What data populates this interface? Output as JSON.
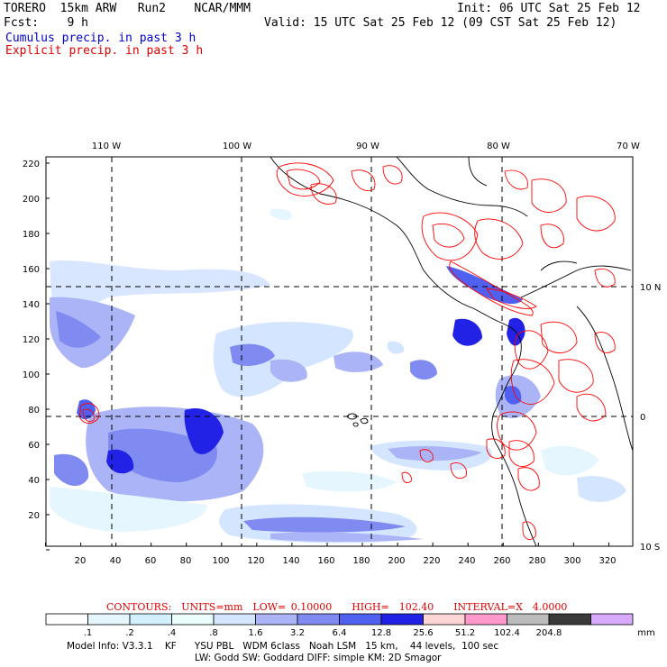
{
  "header": {
    "model_title": "TORERO  15km ARW   Run2    NCAR/MMM",
    "init": "Init: 06 UTC Sat 25 Feb 12",
    "fcst": "Fcst:    9 h",
    "valid": "Valid: 15 UTC Sat 25 Feb 12 (09 CST Sat 25 Feb 12)",
    "field_cumulus": "Cumulus precip. in past 3 h",
    "field_explicit": "Explicit precip. in past 3 h"
  },
  "map": {
    "top_lon_labels": [
      "110 W",
      "100 W",
      "90 W",
      "80 W",
      "70 W"
    ],
    "right_lat_labels": [
      "10 N",
      "0",
      "10 S"
    ],
    "left_y_ticks": [
      "220",
      "200",
      "180",
      "160",
      "140",
      "120",
      "100",
      "80",
      "60",
      "40",
      "20"
    ],
    "bottom_x_ticks": [
      "20",
      "40",
      "60",
      "80",
      "100",
      "120",
      "140",
      "160",
      "180",
      "200",
      "220",
      "240",
      "260",
      "280",
      "300",
      "320"
    ],
    "cumulus_color": "#4455ee",
    "explicit_color": "#ff0000"
  },
  "contours_text": "CONTOURS:  UNITS=mm  LOW= 0.10000    HIGH=  102.40    INTERVAL=X  4.0000",
  "legend": {
    "labels": [
      ".1",
      ".2",
      ".4",
      ".8",
      "1.6",
      "3.2",
      "6.4",
      "12.8",
      "25.6",
      "51.2",
      "102.4",
      "204.8"
    ],
    "unit": "mm",
    "colors": [
      "#ffffff",
      "#e6f6ff",
      "#d2f0ff",
      "#eafffb",
      "#d4e6ff",
      "#aab4f6",
      "#7f8bf0",
      "#5060f0",
      "#2222e6",
      "#ffd4d4",
      "#ff99cc",
      "#bcbcbc",
      "#3a3a3a",
      "#d8aaff"
    ]
  },
  "model_info": {
    "line1": "Model Info: V3.3.1    KF      YSU PBL   WDM 6class   Noah LSM   15 km,    44 levels,  100 sec",
    "line2": "LW: Godd SW: Goddard DIFF: simple KM: 2D Smagor"
  }
}
